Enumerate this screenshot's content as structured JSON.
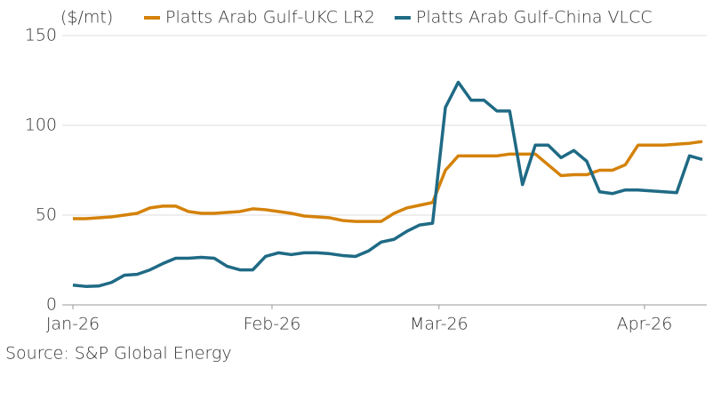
{
  "chart_data": {
    "type": "line",
    "y_label": "($/mt)",
    "source": "Source: S&P Global Energy",
    "x": [
      0,
      2,
      4,
      6,
      8,
      10,
      12,
      14,
      16,
      18,
      20,
      22,
      24,
      26,
      28,
      30,
      32,
      34,
      36,
      38,
      40,
      42,
      44,
      46,
      48,
      50,
      52,
      54,
      56,
      58,
      60,
      62,
      64,
      66,
      68,
      70,
      72,
      74,
      76,
      78,
      80,
      82,
      84,
      86,
      88,
      90,
      92,
      94,
      96,
      98
    ],
    "xlim": [
      0,
      98
    ],
    "xticks": [
      {
        "value": 0,
        "label": "Jan-26"
      },
      {
        "value": 31,
        "label": "Feb-26"
      },
      {
        "value": 57,
        "label": "Mar-26"
      },
      {
        "value": 89,
        "label": "Apr-26"
      }
    ],
    "ylim": [
      0,
      150
    ],
    "yticks": [
      0,
      50,
      100,
      150
    ],
    "grid": true,
    "series": [
      {
        "name": "Platts Arab Gulf-UKC LR2",
        "color": "#d4820a",
        "values": [
          48,
          48,
          48.5,
          49,
          50,
          51,
          54,
          55,
          55,
          52,
          51,
          51,
          51.5,
          52,
          53.5,
          53,
          52,
          51,
          49.5,
          49,
          48.5,
          47,
          46.5,
          46.5,
          46.5,
          51,
          54,
          55.5,
          57,
          75,
          83,
          83,
          83,
          83,
          84,
          84,
          84,
          78,
          72,
          72.5,
          72.5,
          75,
          75,
          78,
          89,
          89,
          89,
          89.5,
          90,
          91
        ]
      },
      {
        "name": "Platts Arab Gulf-China VLCC",
        "color": "#1f6a85",
        "values": [
          11,
          10.3,
          10.5,
          12.5,
          16.5,
          17,
          19.5,
          23,
          26,
          26,
          26.5,
          26,
          21.5,
          19.5,
          19.5,
          27,
          29,
          28,
          29,
          29,
          28.5,
          27.5,
          27,
          30,
          35,
          36.5,
          41,
          44.5,
          45.5,
          110,
          124,
          114,
          114,
          108,
          108,
          67,
          89,
          89,
          82,
          86,
          80,
          63,
          62,
          64,
          64,
          63.5,
          63,
          62.5,
          83,
          81
        ]
      }
    ]
  }
}
